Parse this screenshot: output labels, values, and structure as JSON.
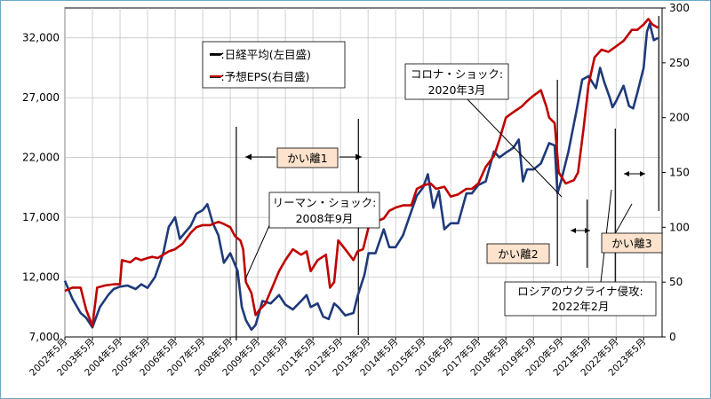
{
  "chart_data": {
    "type": "line",
    "left_axis": {
      "ticks": [
        7000,
        12000,
        17000,
        22000,
        27000,
        32000
      ],
      "tick_labels": [
        "7,000",
        "12,000",
        "17,000",
        "22,000",
        "27,000",
        "32,000"
      ],
      "ylim": [
        7000,
        34500
      ]
    },
    "right_axis": {
      "ticks": [
        0,
        50,
        100,
        150,
        200,
        250,
        300
      ],
      "tick_labels": [
        "0",
        "50",
        "100",
        "150",
        "200",
        "250",
        "300"
      ],
      "ylim": [
        0,
        300
      ]
    },
    "x_tick_labels": [
      "2002年5月",
      "2003年5月",
      "2004年5月",
      "2005年5月",
      "2006年5月",
      "2007年5月",
      "2008年5月",
      "2009年5月",
      "2010年5月",
      "2011年5月",
      "2012年5月",
      "2013年5月",
      "2014年5月",
      "2015年5月",
      "2016年5月",
      "2017年5月",
      "2018年5月",
      "2019年5月",
      "2020年5月",
      "2021年5月",
      "2022年5月",
      "2023年5月"
    ],
    "xlim": [
      2002.33,
      2024.0
    ],
    "grid": true,
    "legend_position": "top-left",
    "series": [
      {
        "name": "日経平均(左目盛)",
        "axis": "left",
        "color": "#1f3a7a",
        "points": [
          [
            2002.33,
            11700
          ],
          [
            2002.6,
            10200
          ],
          [
            2002.9,
            9000
          ],
          [
            2003.1,
            8600
          ],
          [
            2003.33,
            7800
          ],
          [
            2003.6,
            9500
          ],
          [
            2003.9,
            10500
          ],
          [
            2004.1,
            11000
          ],
          [
            2004.33,
            11200
          ],
          [
            2004.6,
            11300
          ],
          [
            2004.9,
            11000
          ],
          [
            2005.1,
            11400
          ],
          [
            2005.33,
            11100
          ],
          [
            2005.6,
            12000
          ],
          [
            2005.9,
            14000
          ],
          [
            2006.1,
            16200
          ],
          [
            2006.33,
            17000
          ],
          [
            2006.5,
            15200
          ],
          [
            2006.9,
            16300
          ],
          [
            2007.1,
            17300
          ],
          [
            2007.33,
            17600
          ],
          [
            2007.5,
            18100
          ],
          [
            2007.7,
            16500
          ],
          [
            2007.9,
            15500
          ],
          [
            2008.1,
            13200
          ],
          [
            2008.33,
            14000
          ],
          [
            2008.6,
            12500
          ],
          [
            2008.75,
            9500
          ],
          [
            2008.9,
            8400
          ],
          [
            2009.1,
            7600
          ],
          [
            2009.25,
            8000
          ],
          [
            2009.5,
            10000
          ],
          [
            2009.8,
            9800
          ],
          [
            2010.1,
            10500
          ],
          [
            2010.33,
            9700
          ],
          [
            2010.6,
            9300
          ],
          [
            2010.9,
            10000
          ],
          [
            2011.1,
            10500
          ],
          [
            2011.25,
            9500
          ],
          [
            2011.5,
            9800
          ],
          [
            2011.7,
            8700
          ],
          [
            2011.9,
            8500
          ],
          [
            2012.1,
            9800
          ],
          [
            2012.25,
            9500
          ],
          [
            2012.5,
            8800
          ],
          [
            2012.8,
            9000
          ],
          [
            2012.95,
            10400
          ],
          [
            2013.2,
            12200
          ],
          [
            2013.35,
            14000
          ],
          [
            2013.6,
            14000
          ],
          [
            2013.9,
            16000
          ],
          [
            2014.1,
            14500
          ],
          [
            2014.33,
            14500
          ],
          [
            2014.6,
            15500
          ],
          [
            2014.9,
            17500
          ],
          [
            2015.1,
            18800
          ],
          [
            2015.33,
            19500
          ],
          [
            2015.5,
            20600
          ],
          [
            2015.7,
            17800
          ],
          [
            2015.9,
            19200
          ],
          [
            2016.1,
            16000
          ],
          [
            2016.33,
            16500
          ],
          [
            2016.6,
            16500
          ],
          [
            2016.9,
            19000
          ],
          [
            2017.1,
            19000
          ],
          [
            2017.33,
            19700
          ],
          [
            2017.6,
            20000
          ],
          [
            2017.9,
            22500
          ],
          [
            2018.1,
            22000
          ],
          [
            2018.33,
            22400
          ],
          [
            2018.6,
            22800
          ],
          [
            2018.8,
            23500
          ],
          [
            2018.95,
            20000
          ],
          [
            2019.1,
            21000
          ],
          [
            2019.33,
            21000
          ],
          [
            2019.6,
            21500
          ],
          [
            2019.9,
            23200
          ],
          [
            2020.1,
            23000
          ],
          [
            2020.2,
            19000
          ],
          [
            2020.33,
            20000
          ],
          [
            2020.6,
            22500
          ],
          [
            2020.9,
            26000
          ],
          [
            2021.1,
            28500
          ],
          [
            2021.33,
            28800
          ],
          [
            2021.6,
            27800
          ],
          [
            2021.75,
            29500
          ],
          [
            2021.9,
            28300
          ],
          [
            2022.1,
            27000
          ],
          [
            2022.2,
            26200
          ],
          [
            2022.33,
            26700
          ],
          [
            2022.6,
            28000
          ],
          [
            2022.8,
            26300
          ],
          [
            2022.95,
            26100
          ],
          [
            2023.1,
            27400
          ],
          [
            2023.33,
            29500
          ],
          [
            2023.45,
            32500
          ],
          [
            2023.55,
            33200
          ],
          [
            2023.7,
            31800
          ],
          [
            2023.85,
            32000
          ]
        ]
      },
      {
        "name": "予想EPS(右目盛)",
        "axis": "right",
        "color": "#c00000",
        "points": [
          [
            2002.33,
            42
          ],
          [
            2002.6,
            45
          ],
          [
            2002.9,
            45
          ],
          [
            2003.1,
            25
          ],
          [
            2003.33,
            10
          ],
          [
            2003.5,
            45
          ],
          [
            2003.8,
            47
          ],
          [
            2004.1,
            48
          ],
          [
            2004.33,
            48
          ],
          [
            2004.4,
            70
          ],
          [
            2004.7,
            68
          ],
          [
            2004.9,
            72
          ],
          [
            2005.1,
            70
          ],
          [
            2005.33,
            72
          ],
          [
            2005.5,
            73
          ],
          [
            2005.7,
            72
          ],
          [
            2005.9,
            75
          ],
          [
            2006.1,
            78
          ],
          [
            2006.33,
            80
          ],
          [
            2006.6,
            85
          ],
          [
            2006.9,
            95
          ],
          [
            2007.1,
            100
          ],
          [
            2007.33,
            102
          ],
          [
            2007.6,
            102
          ],
          [
            2007.9,
            105
          ],
          [
            2008.1,
            103
          ],
          [
            2008.33,
            100
          ],
          [
            2008.5,
            92
          ],
          [
            2008.7,
            88
          ],
          [
            2008.8,
            80
          ],
          [
            2008.9,
            50
          ],
          [
            2009.1,
            40
          ],
          [
            2009.25,
            20
          ],
          [
            2009.4,
            25
          ],
          [
            2009.6,
            30
          ],
          [
            2009.9,
            48
          ],
          [
            2010.1,
            60
          ],
          [
            2010.33,
            70
          ],
          [
            2010.6,
            80
          ],
          [
            2010.9,
            75
          ],
          [
            2011.1,
            78
          ],
          [
            2011.25,
            60
          ],
          [
            2011.5,
            70
          ],
          [
            2011.8,
            75
          ],
          [
            2011.95,
            45
          ],
          [
            2012.1,
            50
          ],
          [
            2012.25,
            88
          ],
          [
            2012.5,
            80
          ],
          [
            2012.8,
            70
          ],
          [
            2012.95,
            78
          ],
          [
            2013.15,
            80
          ],
          [
            2013.35,
            100
          ],
          [
            2013.6,
            105
          ],
          [
            2013.9,
            108
          ],
          [
            2014.1,
            115
          ],
          [
            2014.33,
            118
          ],
          [
            2014.6,
            120
          ],
          [
            2014.9,
            120
          ],
          [
            2015.1,
            135
          ],
          [
            2015.33,
            138
          ],
          [
            2015.6,
            140
          ],
          [
            2015.8,
            135
          ],
          [
            2016.1,
            137
          ],
          [
            2016.33,
            128
          ],
          [
            2016.6,
            130
          ],
          [
            2016.9,
            135
          ],
          [
            2017.1,
            135
          ],
          [
            2017.33,
            140
          ],
          [
            2017.6,
            155
          ],
          [
            2017.9,
            165
          ],
          [
            2018.1,
            180
          ],
          [
            2018.33,
            200
          ],
          [
            2018.6,
            205
          ],
          [
            2018.9,
            210
          ],
          [
            2019.1,
            215
          ],
          [
            2019.33,
            220
          ],
          [
            2019.6,
            225
          ],
          [
            2019.8,
            210
          ],
          [
            2019.9,
            200
          ],
          [
            2020.1,
            195
          ],
          [
            2020.25,
            150
          ],
          [
            2020.5,
            140
          ],
          [
            2020.8,
            143
          ],
          [
            2020.95,
            150
          ],
          [
            2021.15,
            190
          ],
          [
            2021.33,
            230
          ],
          [
            2021.55,
            255
          ],
          [
            2021.8,
            262
          ],
          [
            2022.05,
            260
          ],
          [
            2022.33,
            265
          ],
          [
            2022.6,
            270
          ],
          [
            2022.9,
            280
          ],
          [
            2023.1,
            280
          ],
          [
            2023.33,
            285
          ],
          [
            2023.5,
            290
          ],
          [
            2023.65,
            285
          ],
          [
            2023.85,
            282
          ]
        ]
      }
    ],
    "annotations": {
      "legend_nikkei": "―:日経平均(左目盛)",
      "legend_eps": "―:予想EPS(右目盛)",
      "lehman_line1": "リーマン・ショック:",
      "lehman_line2": "2008年9月",
      "corona_line1": "コロナ・ショック:",
      "corona_line2": "2020年3月",
      "russia_line1": "ロシアのウクライナ侵攻:",
      "russia_line2": "2022年2月",
      "gap1": "かい離1",
      "gap2": "かい離2",
      "gap3": "かい離3"
    }
  }
}
